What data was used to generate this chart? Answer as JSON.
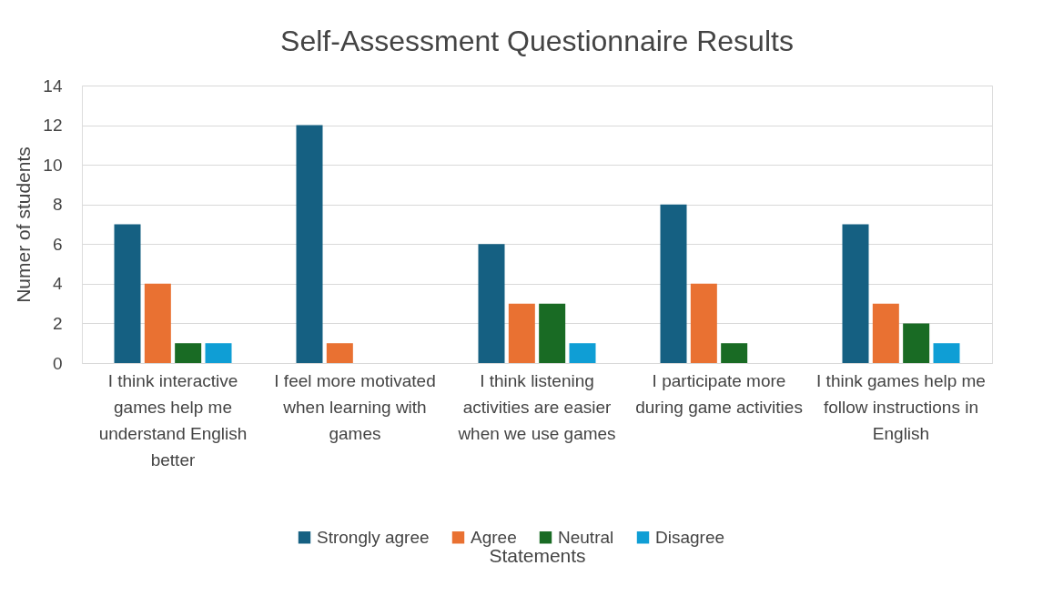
{
  "chart_data": {
    "type": "bar",
    "title": "Self-Assessment Questionnaire Results",
    "xlabel": "Statements",
    "ylabel": "Numer of students",
    "categories": [
      "I think interactive games help me understand English better",
      "I feel more motivated when learning with games",
      "I think listening activities are easier when we use games",
      "I participate more during game activities",
      "I think games help me follow instructions in English"
    ],
    "series": [
      {
        "name": "Strongly agree",
        "color": "#156082",
        "values": [
          7,
          12,
          6,
          8,
          7
        ]
      },
      {
        "name": "Agree",
        "color": "#e97132",
        "values": [
          4,
          1,
          3,
          4,
          3
        ]
      },
      {
        "name": "Neutral",
        "color": "#196b24",
        "values": [
          1,
          null,
          3,
          1,
          2
        ]
      },
      {
        "name": "Disagree",
        "color": "#0f9ed5",
        "values": [
          1,
          null,
          1,
          null,
          1
        ]
      }
    ],
    "ylim": [
      0,
      14
    ],
    "yticks": [
      0,
      2,
      4,
      6,
      8,
      10,
      12,
      14
    ],
    "grid": "y",
    "legend": "bottom"
  }
}
